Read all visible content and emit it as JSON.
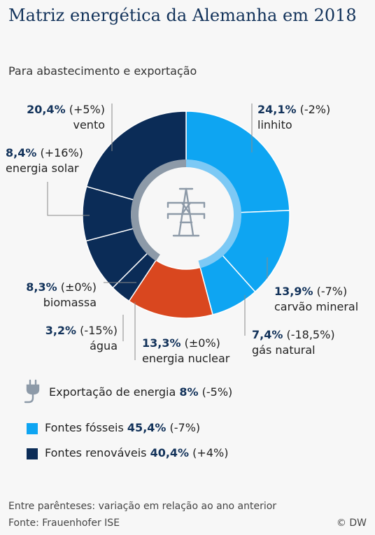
{
  "header": {
    "title": "Matriz energética da Alemanha em 2018",
    "subtitle": "Para abastecimento e exportação"
  },
  "chart_data": {
    "type": "pie",
    "donut": true,
    "units": "%",
    "slices": [
      {
        "label": "linhito",
        "value": 24.1,
        "value_text": "24,1%",
        "change_text": "(-2%)",
        "color": "#0ea5f2",
        "group": "fossil"
      },
      {
        "label": "carvão mineral",
        "value": 13.9,
        "value_text": "13,9%",
        "change_text": "(-7%)",
        "color": "#0ea5f2",
        "group": "fossil"
      },
      {
        "label": "gás natural",
        "value": 7.4,
        "value_text": "7,4%",
        "change_text": "(-18,5%)",
        "color": "#0ea5f2",
        "group": "fossil"
      },
      {
        "label": "energia nuclear",
        "value": 13.3,
        "value_text": "13,3%",
        "change_text": "(±0%)",
        "color": "#d9471f",
        "group": "nuclear"
      },
      {
        "label": "água",
        "value": 3.2,
        "value_text": "3,2%",
        "change_text": "(-15%)",
        "color": "#0b2c57",
        "group": "renewable"
      },
      {
        "label": "biomassa",
        "value": 8.3,
        "value_text": "8,3%",
        "change_text": "(±0%)",
        "color": "#0b2c57",
        "group": "renewable"
      },
      {
        "label": "energia solar",
        "value": 8.4,
        "value_text": "8,4%",
        "change_text": "(+16%)",
        "color": "#0b2c57",
        "group": "renewable"
      },
      {
        "label": "vento",
        "value": 20.4,
        "value_text": "20,4%",
        "change_text": "(+5%)",
        "color": "#0b2c57",
        "group": "renewable"
      }
    ],
    "inner_ring": [
      {
        "label": "Fontes fósseis",
        "value": 45.4,
        "color": "#7cc9f5"
      },
      {
        "label": "Fontes renováveis",
        "value": 40.4,
        "color": "#8d9aa8"
      }
    ],
    "center_icon": "power-pylon-icon"
  },
  "legend": {
    "export": {
      "icon": "plug-icon",
      "text": "Exportação de energia",
      "value": "8%",
      "change": "(-5%)"
    },
    "fossil": {
      "color": "#0ea5f2",
      "text": "Fontes fósseis",
      "value": "45,4%",
      "change": "(-7%)"
    },
    "renewable": {
      "color": "#0b2c57",
      "text": "Fontes renováveis",
      "value": "40,4%",
      "change": "(+4%)"
    }
  },
  "footer": {
    "note": "Entre parênteses: variação em relação ao ano anterior",
    "source": "Fonte: Frauenhofer ISE",
    "credit": "© DW"
  }
}
